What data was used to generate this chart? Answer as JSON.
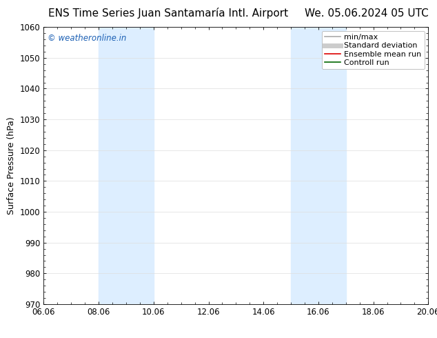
{
  "title_left": "ENS Time Series Juan Santamaría Intl. Airport",
  "title_right": "We. 05.06.2024 05 UTC",
  "ylabel": "Surface Pressure (hPa)",
  "ylim": [
    970,
    1060
  ],
  "yticks": [
    970,
    980,
    990,
    1000,
    1010,
    1020,
    1030,
    1040,
    1050,
    1060
  ],
  "xtick_labels": [
    "06.06",
    "08.06",
    "10.06",
    "12.06",
    "14.06",
    "16.06",
    "18.06",
    "20.06"
  ],
  "xtick_values": [
    0,
    2,
    4,
    6,
    8,
    10,
    12,
    14
  ],
  "xlim": [
    0,
    14
  ],
  "shaded_regions": [
    {
      "x_start": 2,
      "x_end": 4,
      "color": "#ddeeff"
    },
    {
      "x_start": 9,
      "x_end": 11,
      "color": "#ddeeff"
    }
  ],
  "watermark_text": "© weatheronline.in",
  "watermark_color": "#1a5fb4",
  "watermark_fontsize": 8.5,
  "legend_items": [
    {
      "label": "min/max",
      "color": "#aaaaaa",
      "lw": 1.2,
      "style": "solid"
    },
    {
      "label": "Standard deviation",
      "color": "#cccccc",
      "lw": 5,
      "style": "solid"
    },
    {
      "label": "Ensemble mean run",
      "color": "#dd0000",
      "lw": 1.2,
      "style": "solid"
    },
    {
      "label": "Controll run",
      "color": "#006600",
      "lw": 1.2,
      "style": "solid"
    }
  ],
  "background_color": "#ffffff",
  "plot_bg_color": "#ffffff",
  "grid_color": "#dddddd",
  "title_fontsize": 11,
  "ylabel_fontsize": 9,
  "tick_fontsize": 8.5,
  "legend_fontsize": 8
}
